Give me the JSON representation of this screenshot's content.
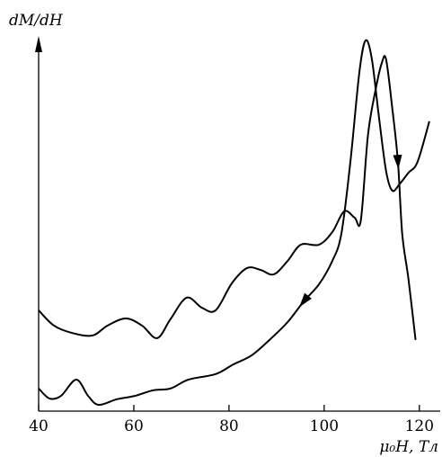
{
  "chart_data": {
    "type": "line",
    "y_label": "dM/dH",
    "x_label": "μ₀H, Тл",
    "xlim": [
      40,
      124
    ],
    "xticks": [
      40,
      60,
      80,
      100,
      120
    ],
    "ylim": [
      0,
      100
    ],
    "series": [
      {
        "color": "#000000",
        "x": [
          40,
          43.2,
          47.0,
          51.3,
          54.5,
          58.3,
          61.7,
          64.9,
          67.7,
          71.1,
          74.3,
          77.2,
          80.6,
          83.8,
          86.6,
          89.4,
          92.3,
          95.1,
          98.9,
          101.7,
          104.2,
          106.4,
          107.7,
          109.2,
          110.8,
          112.1,
          113.0,
          114.3,
          115.5,
          116.4,
          117.7,
          119.2
        ],
        "values": [
          27.2,
          23.1,
          21.1,
          20.4,
          23.1,
          25.0,
          23.1,
          19.7,
          24.8,
          30.6,
          27.9,
          27.2,
          34.5,
          38.6,
          38.1,
          36.9,
          40.5,
          44.9,
          44.9,
          48.3,
          53.9,
          52.2,
          51.5,
          74.5,
          86.7,
          93.9,
          94.9,
          81.8,
          67.2,
          47.8,
          35.7,
          19.2
        ]
      },
      {
        "color": "#000000",
        "x": [
          40,
          42.3,
          44.7,
          47.9,
          50.4,
          52.6,
          56.4,
          60.2,
          64.0,
          67.7,
          71.5,
          77.2,
          80.9,
          84.7,
          88.5,
          92.3,
          95.7,
          98.9,
          101.7,
          103.6,
          105.5,
          107.4,
          108.7,
          110.0,
          111.5,
          113.0,
          114.3,
          115.8,
          117.7,
          119.6,
          122.1
        ],
        "values": [
          6.1,
          3.4,
          4.1,
          8.5,
          4.1,
          1.7,
          3.2,
          4.1,
          5.6,
          6.1,
          8.5,
          10.0,
          12.6,
          15.0,
          19.2,
          24.0,
          29.6,
          34.2,
          40.5,
          47.8,
          67.2,
          91.5,
          100,
          95.1,
          79.4,
          64.8,
          59.5,
          61.2,
          64.3,
          67.2,
          78.2
        ]
      }
    ]
  }
}
